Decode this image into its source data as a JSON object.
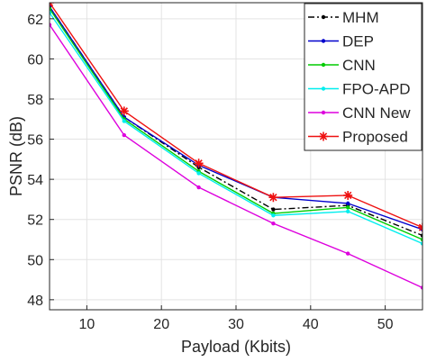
{
  "chart_data": {
    "type": "line",
    "xlabel": "Payload (Kbits)",
    "ylabel": "PSNR (dB)",
    "xlim": [
      5,
      55
    ],
    "ylim": [
      47.5,
      62.8
    ],
    "xticks": [
      10,
      20,
      30,
      40,
      50
    ],
    "yticks": [
      48,
      50,
      52,
      54,
      56,
      58,
      60,
      62
    ],
    "grid": true,
    "legend_position": "top-right",
    "x": [
      5,
      15,
      25,
      35,
      45,
      55
    ],
    "series": [
      {
        "name": "MHM",
        "color": "#000000",
        "line": "dashdot",
        "marker": "dot",
        "x": [
          5,
          15,
          25,
          35,
          45,
          55
        ],
        "values": [
          62.6,
          57.1,
          54.6,
          52.5,
          52.7,
          51.2
        ]
      },
      {
        "name": "DEP",
        "color": "#0000cc",
        "line": "solid",
        "marker": "dot",
        "x": [
          5,
          15,
          25,
          35,
          45,
          55
        ],
        "values": [
          62.6,
          57.1,
          54.7,
          53.1,
          52.8,
          51.5
        ]
      },
      {
        "name": "CNN",
        "color": "#00cc00",
        "line": "solid",
        "marker": "dot",
        "x": [
          5,
          15,
          25,
          35,
          45,
          55
        ],
        "values": [
          62.5,
          57.0,
          54.4,
          52.3,
          52.6,
          51.0
        ]
      },
      {
        "name": "FPO-APD",
        "color": "#00eeee",
        "line": "solid",
        "marker": "dot",
        "x": [
          5,
          15,
          25,
          35,
          45,
          55
        ],
        "values": [
          62.3,
          56.9,
          54.3,
          52.2,
          52.4,
          50.8
        ]
      },
      {
        "name": "CNN New",
        "color": "#dd00dd",
        "line": "solid",
        "marker": "dot",
        "x": [
          5,
          15,
          25,
          35,
          45,
          55
        ],
        "values": [
          61.7,
          56.2,
          53.6,
          51.8,
          50.3,
          48.6
        ]
      },
      {
        "name": "Proposed",
        "color": "#ee1111",
        "line": "solid",
        "marker": "star",
        "x": [
          5,
          15,
          25,
          35,
          45,
          55
        ],
        "values": [
          62.8,
          57.4,
          54.8,
          53.1,
          53.2,
          51.6
        ]
      }
    ]
  }
}
